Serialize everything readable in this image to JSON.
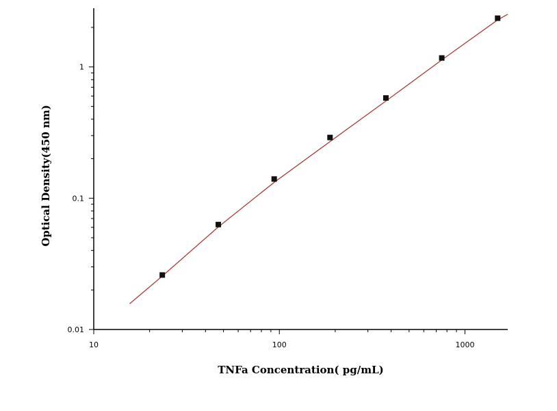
{
  "chart_data": {
    "type": "scatter",
    "xlabel": "TNFa Concentration( pg/mL)",
    "ylabel": "Optical Density(450 nm)",
    "x_scale": "log",
    "y_scale": "log",
    "xlim": [
      10,
      1700
    ],
    "ylim": [
      0.01,
      2.8
    ],
    "x_ticks": [
      {
        "value": 10,
        "label": "10"
      },
      {
        "value": 100,
        "label": "100"
      },
      {
        "value": 1000,
        "label": "1000"
      }
    ],
    "y_ticks": [
      {
        "value": 0.01,
        "label": "0.01"
      },
      {
        "value": 0.1,
        "label": "0.1"
      },
      {
        "value": 1,
        "label": "1"
      }
    ],
    "grid": false,
    "series": [
      {
        "marker": "square",
        "color": "#111111",
        "x": [
          23.4,
          46.9,
          93.8,
          187.5,
          375,
          750,
          1500
        ],
        "y": [
          0.026,
          0.063,
          0.14,
          0.29,
          0.58,
          1.17,
          2.35
        ]
      }
    ],
    "fit_curve": {
      "color": "#b03a3a",
      "x": [
        15.6,
        23.4,
        46.9,
        93.8,
        187.5,
        375,
        750,
        1500,
        1700
      ],
      "y": [
        0.0157,
        0.0255,
        0.0605,
        0.132,
        0.27,
        0.55,
        1.13,
        2.28,
        2.52
      ]
    }
  }
}
